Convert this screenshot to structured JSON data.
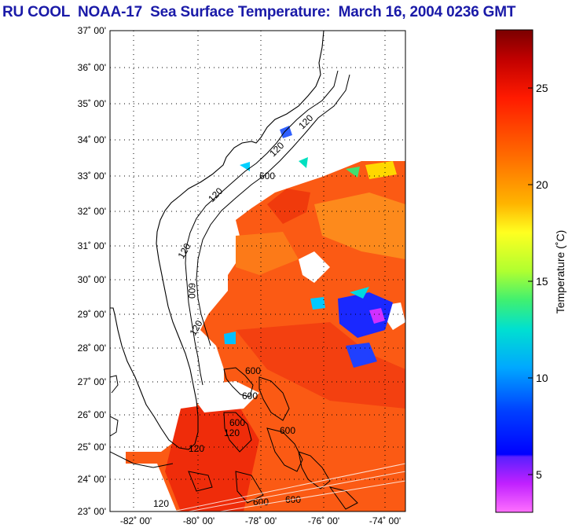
{
  "title": "RU COOL  NOAA-17  Sea Surface Temperature:  March 16, 2004 0236 GMT",
  "map": {
    "lat_labels": [
      "37˚ 00'",
      "36˚ 00'",
      "35˚ 00'",
      "34˚ 00'",
      "33˚ 00'",
      "32˚ 00'",
      "31˚ 00'",
      "30˚ 00'",
      "29˚ 00'",
      "28˚ 00'",
      "27˚ 00'",
      "26˚ 00'",
      "25˚ 00'",
      "24˚ 00'",
      "23˚ 00'"
    ],
    "lon_labels": [
      "-82˚ 00'",
      "-80˚ 00'",
      "-78˚ 00'",
      "-76˚ 00'",
      "-74˚ 00'"
    ],
    "isobath_labels": [
      "120",
      "120",
      "120",
      "120",
      "120",
      "120",
      "600",
      "600",
      "600",
      "600",
      "600",
      "600",
      "600",
      "600",
      "120",
      "120"
    ]
  },
  "colorbar": {
    "ticks": [
      "25",
      "20",
      "15",
      "10",
      "5"
    ],
    "label": "Temperature (˚C)",
    "colors": [
      "#7a0000",
      "#d40000",
      "#ff2200",
      "#ff7a00",
      "#ffd500",
      "#ffff2a",
      "#9cff2a",
      "#1fe07a",
      "#00dcdc",
      "#009cff",
      "#0038ff",
      "#0000ff",
      "#7a00ff",
      "#dc28ff",
      "#ff80ff"
    ]
  }
}
